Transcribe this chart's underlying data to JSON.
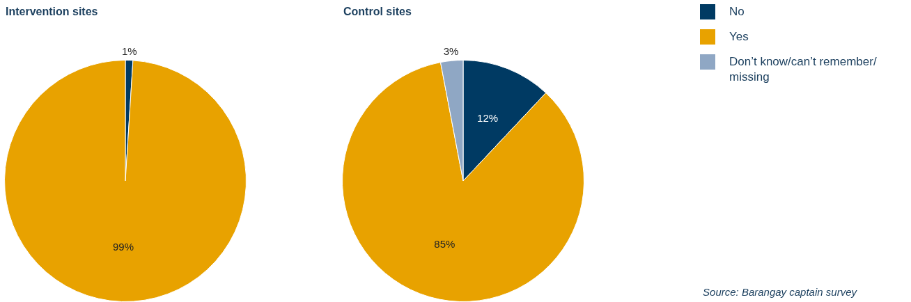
{
  "chart_data": [
    {
      "type": "pie",
      "title": "Intervention sites",
      "categories": [
        null,
        null,
        null
      ],
      "values": [
        1,
        99,
        0
      ],
      "colors": [
        "#003a63",
        "#e8a200",
        "#8fa7c4"
      ],
      "value_labels": [
        "1%",
        "99%",
        null
      ],
      "legend": false
    },
    {
      "type": "pie",
      "title": "Control sites",
      "categories": [
        "No",
        "Yes",
        "Don’t know/can’t remember/ missing"
      ],
      "values": [
        12,
        85,
        3
      ],
      "colors": [
        "#003a63",
        "#e8a200",
        "#8fa7c4"
      ],
      "value_labels": [
        "12%",
        "85%",
        "3%"
      ],
      "legend": "top right",
      "annotations": [
        "Source: Barangay captain survey"
      ]
    }
  ]
}
